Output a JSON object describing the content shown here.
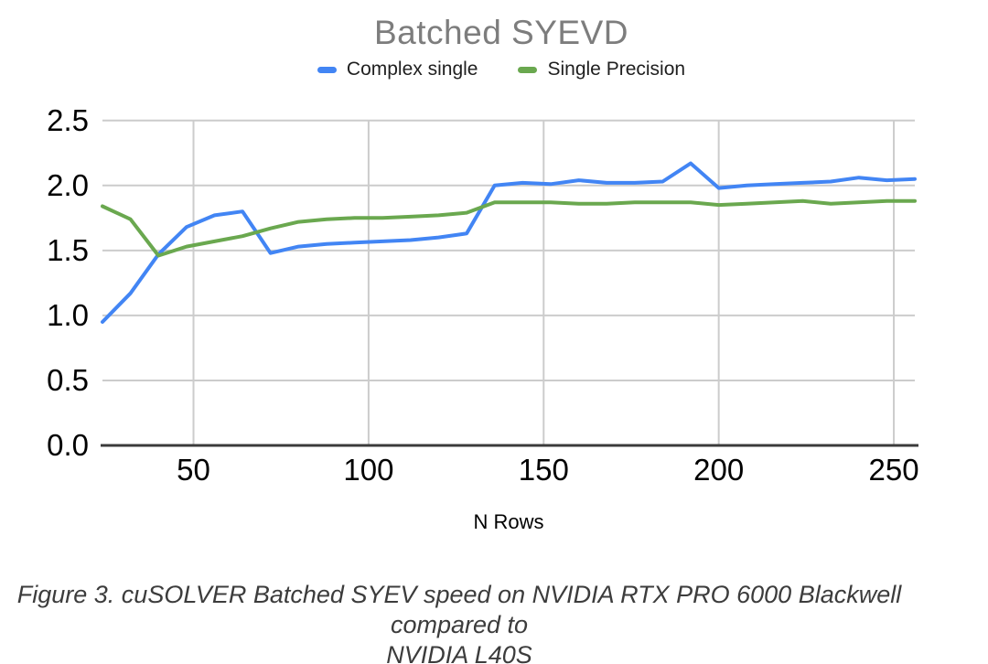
{
  "title": "Batched SYEVD",
  "x_axis_label": "N Rows",
  "caption": {
    "line1": "Figure 3. cuSOLVER Batched SYEV speed on NVIDIA RTX PRO 6000 Blackwell compared to",
    "line2": "NVIDIA L40S"
  },
  "colors": {
    "title": "#7d7d7d",
    "gridline": "#cccccc",
    "axis_line": "#3b3b3b",
    "tick_label": "#000000",
    "caption": "#3c3c3c",
    "background": "#ffffff",
    "series_blue": "#4285f4",
    "series_green": "#6aa84f"
  },
  "chart_data": {
    "type": "line",
    "title": "Batched SYEVD",
    "xlabel": "N Rows",
    "ylabel": "",
    "xlim": [
      24,
      256
    ],
    "ylim": [
      0,
      2.5
    ],
    "x_ticks": [
      50,
      100,
      150,
      200,
      250
    ],
    "y_ticks": [
      0.0,
      0.5,
      1.0,
      1.5,
      2.0,
      2.5
    ],
    "grid": true,
    "legend_position": "top",
    "x": [
      24,
      32,
      40,
      48,
      56,
      64,
      72,
      80,
      88,
      96,
      104,
      112,
      120,
      128,
      136,
      144,
      152,
      160,
      168,
      176,
      184,
      192,
      200,
      208,
      216,
      224,
      232,
      240,
      248,
      256
    ],
    "series": [
      {
        "name": "Complex single",
        "color": "#4285f4",
        "values": [
          0.95,
          1.17,
          1.47,
          1.68,
          1.77,
          1.8,
          1.48,
          1.53,
          1.55,
          1.56,
          1.57,
          1.58,
          1.6,
          1.63,
          2.0,
          2.02,
          2.01,
          2.04,
          2.02,
          2.02,
          2.03,
          2.17,
          1.98,
          2.0,
          2.01,
          2.02,
          2.03,
          2.06,
          2.04,
          2.05
        ]
      },
      {
        "name": "Single Precision",
        "color": "#6aa84f",
        "values": [
          1.84,
          1.74,
          1.46,
          1.53,
          1.57,
          1.61,
          1.67,
          1.72,
          1.74,
          1.75,
          1.75,
          1.76,
          1.77,
          1.79,
          1.87,
          1.87,
          1.87,
          1.86,
          1.86,
          1.87,
          1.87,
          1.87,
          1.85,
          1.86,
          1.87,
          1.88,
          1.86,
          1.87,
          1.88,
          1.88
        ]
      }
    ]
  }
}
